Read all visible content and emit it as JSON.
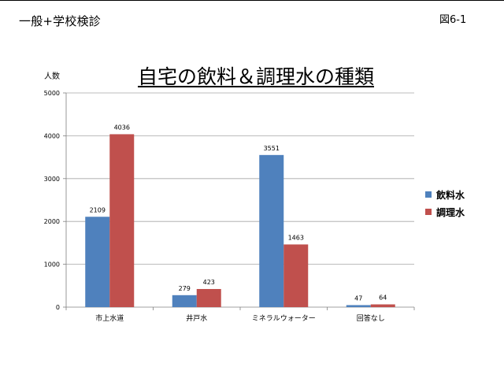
{
  "header": {
    "left_title": "一般+学校検診",
    "figure_label": "図6-1"
  },
  "chart_data": {
    "type": "bar",
    "title": "自宅の飲料＆調理水の種類",
    "ylabel": "人数",
    "xlabel": "",
    "ylim": [
      0,
      5000
    ],
    "yticks": [
      0,
      1000,
      2000,
      3000,
      4000,
      5000
    ],
    "grid": true,
    "legend_position": "right",
    "categories": [
      "市上水道",
      "井戸水",
      "ミネラルウォーター",
      "回答なし"
    ],
    "series": [
      {
        "name": "飲料水",
        "color": "#4f81bd",
        "values": [
          2109,
          279,
          3551,
          47
        ]
      },
      {
        "name": "調理水",
        "color": "#c0504d",
        "values": [
          4036,
          423,
          1463,
          64
        ]
      }
    ]
  }
}
